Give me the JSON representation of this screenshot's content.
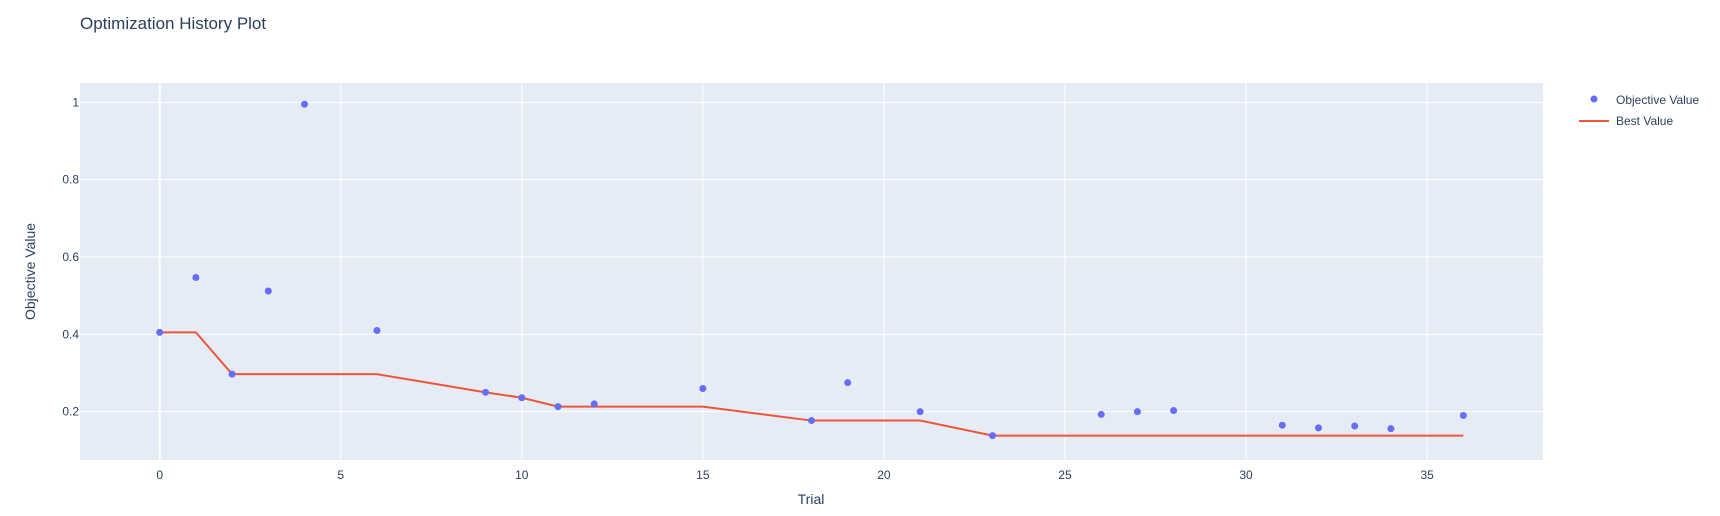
{
  "chart_data": {
    "type": "scatter",
    "title": "Optimization History Plot",
    "xlabel": "Trial",
    "ylabel": "Objective Value",
    "xlim": [
      -2.2,
      38.2
    ],
    "ylim": [
      0.075,
      1.05
    ],
    "xticks": [
      0,
      5,
      10,
      15,
      20,
      25,
      30,
      35
    ],
    "yticks": [
      0.2,
      0.4,
      0.6,
      0.8,
      1
    ],
    "grid": true,
    "legend_position": "top-right",
    "colors": {
      "plot_bg": "#e5ecf6",
      "grid": "#ffffff",
      "objective": "#636efa",
      "best": "#ef553b"
    },
    "series": [
      {
        "name": "Objective Value",
        "mode": "markers",
        "x": [
          0,
          1,
          2,
          3,
          4,
          6,
          9,
          10,
          11,
          12,
          15,
          18,
          19,
          21,
          23,
          26,
          27,
          28,
          31,
          32,
          33,
          34,
          36
        ],
        "y": [
          0.405,
          0.547,
          0.297,
          0.512,
          0.995,
          0.41,
          0.25,
          0.236,
          0.213,
          0.22,
          0.26,
          0.177,
          0.275,
          0.2,
          0.138,
          0.193,
          0.2,
          0.203,
          0.165,
          0.158,
          0.163,
          0.156,
          0.19
        ]
      },
      {
        "name": "Best Value",
        "mode": "lines",
        "x": [
          0,
          1,
          2,
          3,
          4,
          6,
          9,
          10,
          11,
          12,
          15,
          18,
          19,
          21,
          23,
          26,
          27,
          28,
          31,
          32,
          33,
          34,
          36
        ],
        "y": [
          0.405,
          0.405,
          0.297,
          0.297,
          0.297,
          0.297,
          0.25,
          0.236,
          0.213,
          0.213,
          0.213,
          0.177,
          0.177,
          0.177,
          0.138,
          0.138,
          0.138,
          0.138,
          0.138,
          0.138,
          0.138,
          0.138,
          0.138
        ]
      }
    ],
    "legend": [
      "Objective Value",
      "Best Value"
    ]
  }
}
